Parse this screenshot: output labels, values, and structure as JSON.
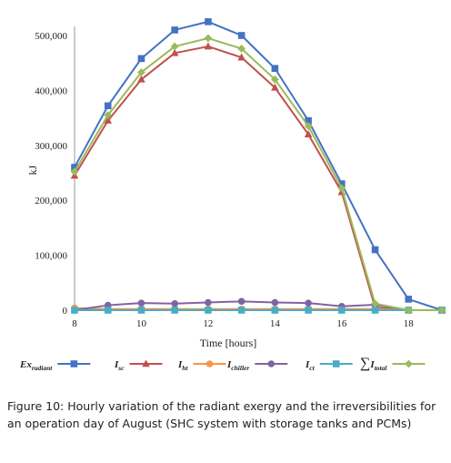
{
  "chart_data": {
    "type": "line",
    "title": "",
    "xlabel": "Time [hours]",
    "ylabel": "kJ",
    "x": [
      8,
      9,
      10,
      11,
      12,
      13,
      14,
      15,
      16,
      17,
      18,
      19
    ],
    "xlim": [
      8,
      19
    ],
    "ylim": [
      0,
      500000
    ],
    "xticks": [
      "8",
      "10",
      "12",
      "14",
      "16",
      "18"
    ],
    "yticks": [
      "0",
      "100,000",
      "200,000",
      "300,000",
      "400,000",
      "500,000"
    ],
    "grid": false,
    "legend_position": "bottom",
    "series": [
      {
        "name": "Ex",
        "subscript": "radiant",
        "color": "#4472C4",
        "marker": "square",
        "values": [
          260000,
          372000,
          458000,
          510000,
          525000,
          500000,
          440000,
          345000,
          230000,
          110000,
          20000,
          0
        ]
      },
      {
        "name": "I",
        "subscript": "sc",
        "color": "#C0504D",
        "marker": "triangle",
        "values": [
          245000,
          345000,
          420000,
          468000,
          480000,
          460000,
          405000,
          320000,
          215000,
          5000,
          0,
          0
        ]
      },
      {
        "name": "I",
        "subscript": "ht",
        "color": "#F79646",
        "marker": "circle",
        "values": [
          4000,
          2000,
          2000,
          2000,
          2000,
          2000,
          2000,
          2000,
          2000,
          2000,
          0,
          0
        ]
      },
      {
        "name": "I",
        "subscript": "chiller",
        "color": "#8064A2",
        "marker": "circle",
        "values": [
          0,
          9000,
          13000,
          12000,
          14000,
          16000,
          14000,
          13000,
          7000,
          10000,
          0,
          0
        ]
      },
      {
        "name": "I",
        "subscript": "ct",
        "color": "#4BACC6",
        "marker": "square",
        "values": [
          0,
          0,
          0,
          0,
          0,
          0,
          0,
          0,
          0,
          0,
          0,
          0
        ]
      },
      {
        "name": "∑I",
        "subscript": "total",
        "color": "#9BBB59",
        "marker": "diamond",
        "values": [
          252000,
          355000,
          433000,
          480000,
          495000,
          476000,
          420000,
          335000,
          222000,
          12000,
          0,
          0
        ]
      }
    ]
  },
  "caption": {
    "label": "Figure 10:",
    "text": "Hourly variation of the radiant exergy and the irreversibilities for an operation day of August (SHC system with storage tanks and PCMs)"
  }
}
